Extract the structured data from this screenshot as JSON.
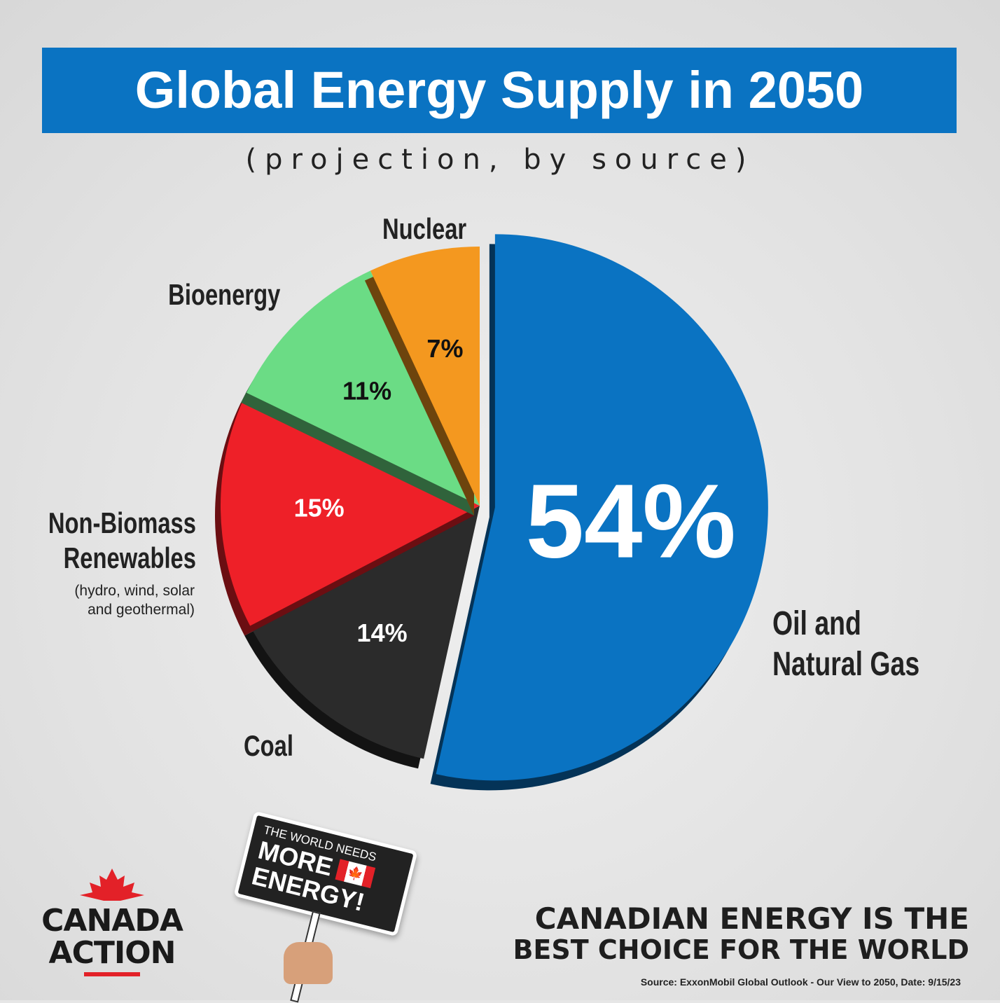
{
  "chart_data": {
    "type": "pie",
    "title": "Global Energy Supply in 2050",
    "subtitle": "(projection, by source)",
    "slices": [
      {
        "label": "Oil and Natural Gas",
        "value": 54,
        "value_label": "54%",
        "color": "#0a73c2"
      },
      {
        "label": "Coal",
        "value": 14,
        "value_label": "14%",
        "color": "#2b2b2b"
      },
      {
        "label": "Non-Biomass Renewables",
        "note": "(hydro, wind, solar and geothermal)",
        "value": 15,
        "value_label": "15%",
        "color": "#ee2028"
      },
      {
        "label": "Bioenergy",
        "value": 11,
        "value_label": "11%",
        "color": "#6bdc85"
      },
      {
        "label": "Nuclear",
        "value": 7,
        "value_label": "7%",
        "color": "#f4981f"
      }
    ]
  },
  "sign": {
    "line1": "THE WORLD NEEDS",
    "line2": "MORE",
    "line3": "ENERGY!"
  },
  "logo": {
    "line1": "CANADA",
    "line2": "ACTION"
  },
  "tagline": {
    "line1": "CANADIAN ENERGY IS THE",
    "line2": "BEST CHOICE FOR THE WORLD"
  },
  "source": "Source: ExxonMobil Global Outlook - Our View to 2050, Date: 9/15/23"
}
